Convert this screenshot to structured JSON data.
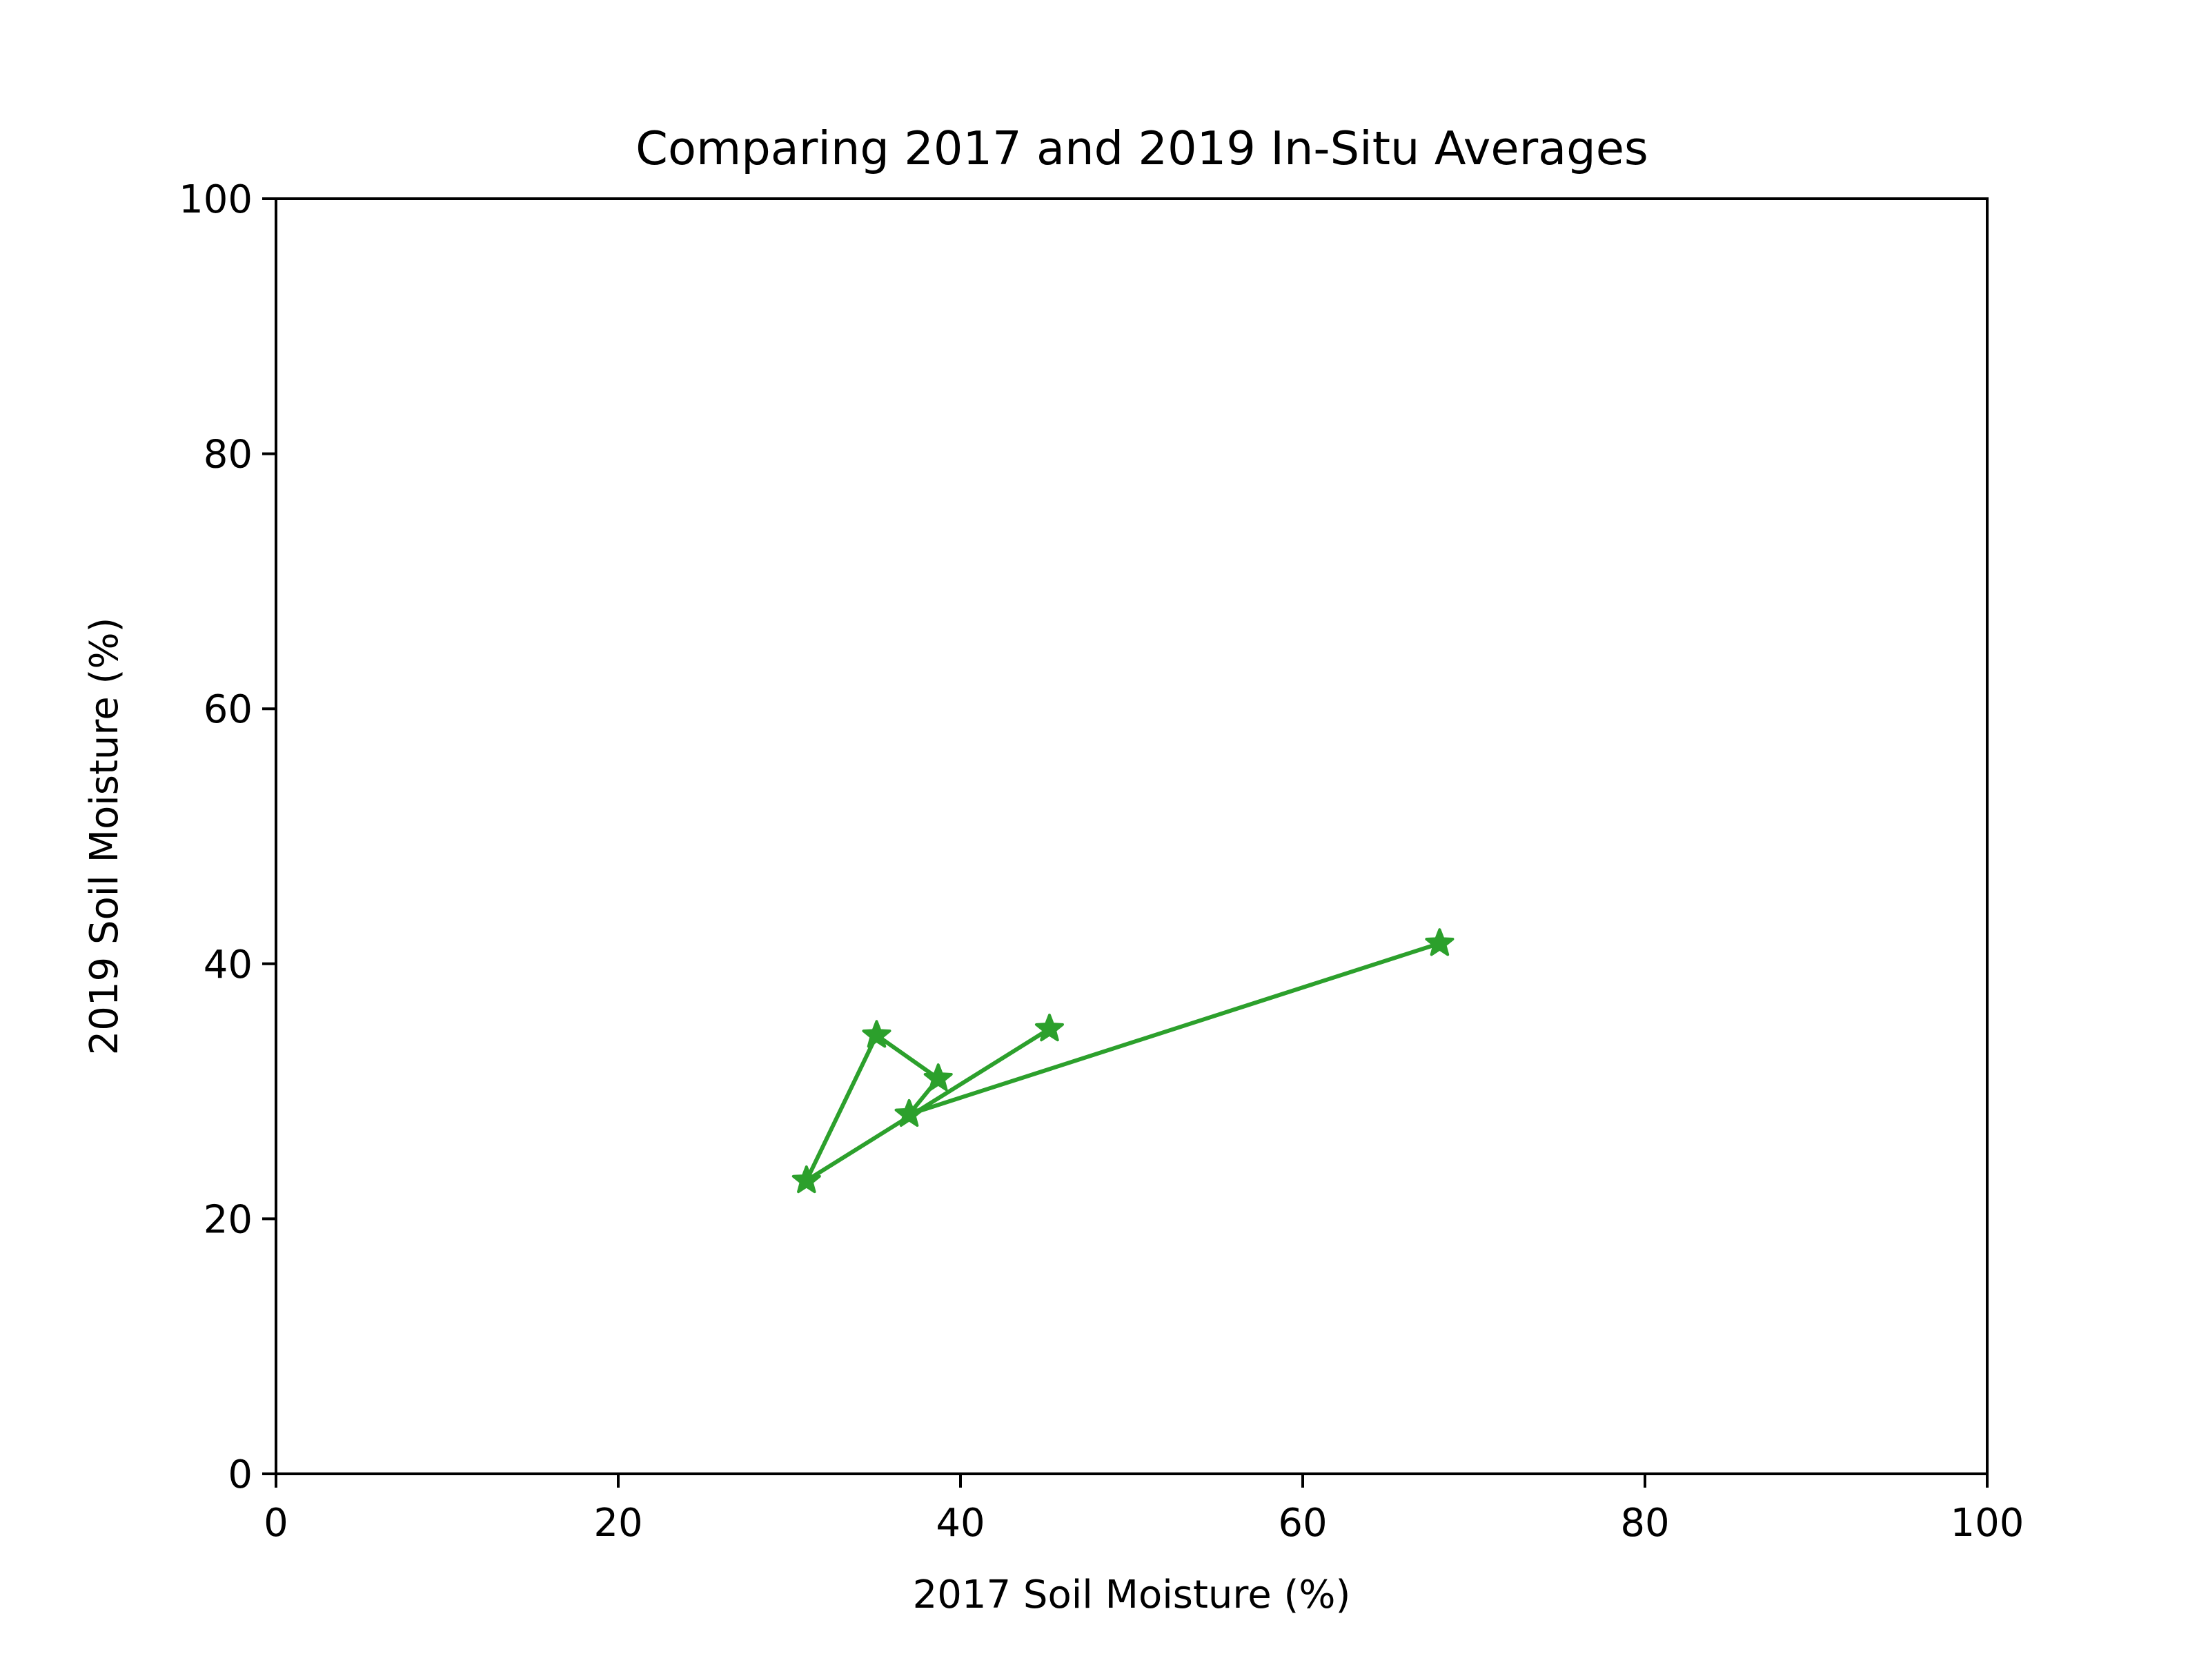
{
  "chart_data": {
    "type": "line",
    "title": "Comparing 2017 and 2019 In-Situ Averages",
    "xlabel": "2017 Soil Moisture (%)",
    "ylabel": "2019 Soil Moisture (%)",
    "xlim": [
      0,
      100
    ],
    "ylim": [
      0,
      100
    ],
    "xticks": [
      0,
      20,
      40,
      60,
      80,
      100
    ],
    "yticks": [
      0,
      20,
      40,
      60,
      80,
      100
    ],
    "xtick_labels": [
      "0",
      "20",
      "40",
      "60",
      "80",
      "100"
    ],
    "ytick_labels": [
      "0",
      "20",
      "40",
      "60",
      "80",
      "100"
    ],
    "grid": false,
    "series": [
      {
        "color": "#2ca02c",
        "marker": "star",
        "points": [
          {
            "x": 45.2,
            "y": 34.9
          },
          {
            "x": 31.0,
            "y": 23.0
          },
          {
            "x": 35.1,
            "y": 34.4
          },
          {
            "x": 38.7,
            "y": 31.0
          },
          {
            "x": 37.0,
            "y": 28.2
          },
          {
            "x": 68.0,
            "y": 41.6
          }
        ]
      }
    ]
  }
}
